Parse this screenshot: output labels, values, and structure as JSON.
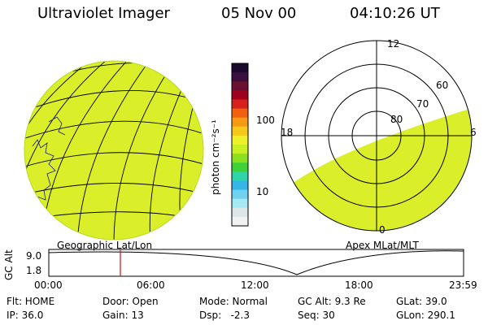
{
  "header": {
    "title": "Ultraviolet Imager",
    "date": "05 Nov 00",
    "time": "04:10:26 UT"
  },
  "colorbar": {
    "unit_label": "photon cm⁻²s⁻¹",
    "tick_labels": [
      "100",
      "10"
    ],
    "colors": [
      "#1a0a2e",
      "#3b1040",
      "#6a1030",
      "#a00020",
      "#d8201a",
      "#f06010",
      "#f59a12",
      "#f7c81c",
      "#eef02a",
      "#c8ef22",
      "#8be01f",
      "#3ed13a",
      "#2fd5a8",
      "#36b6e8",
      "#6fd2f0",
      "#a7e9f2",
      "#dde7ea",
      "#f2f2f2"
    ]
  },
  "left_map": {
    "label": "Geographic Lat/Lon",
    "fill_color": "#dbee2a"
  },
  "polar_plot": {
    "label": "Apex MLat/MLT",
    "lat_labels": [
      "80",
      "70",
      "60"
    ],
    "mlt_labels": [
      "12",
      "18",
      "6",
      "0"
    ]
  },
  "altitude_strip": {
    "ylabel": "GC Alt",
    "y_ticks": [
      "9.0",
      "1.8"
    ],
    "x_ticks": [
      "00:00",
      "06:00",
      "12:00",
      "18:00",
      "23:59"
    ],
    "marker_time": "04:10"
  },
  "status": {
    "rows": [
      [
        "Flt: HOME",
        "Door: Open",
        "Mode: Normal",
        "GC Alt: 9.3 Re",
        "GLat: 39.0"
      ],
      [
        "IP: 36.0",
        "Gain: 13",
        "Dsp:   -2.3",
        "Seq: 30",
        "GLon: 290.1"
      ]
    ]
  }
}
